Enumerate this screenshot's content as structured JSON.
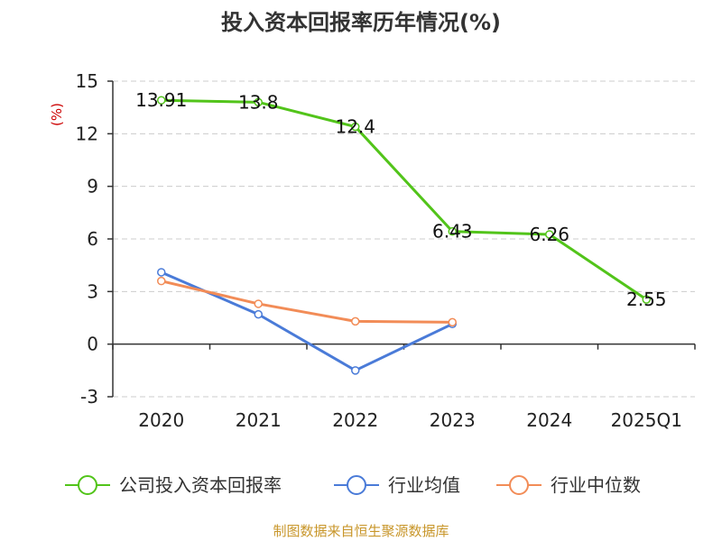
{
  "chart_data": {
    "type": "line",
    "title": "投入资本回报率历年情况(%)",
    "ylabel": "(%)",
    "categories": [
      "2020",
      "2021",
      "2022",
      "2023",
      "2024",
      "2025Q1"
    ],
    "ylim": [
      -3,
      15
    ],
    "yticks": [
      "15",
      "12",
      "9",
      "6",
      "3",
      "0",
      "-3"
    ],
    "grid": true,
    "legend_position": "bottom",
    "series": [
      {
        "name": "公司投入资本回报率",
        "color": "#52c41a",
        "values": [
          13.91,
          13.8,
          12.4,
          6.43,
          6.26,
          2.55
        ],
        "labels": [
          "13.91",
          "13.8",
          "12.4",
          "6.43",
          "6.26",
          "2.55"
        ]
      },
      {
        "name": "行业均值",
        "color": "#4a7bd8",
        "values": [
          4.1,
          1.7,
          -1.5,
          1.15,
          null,
          null
        ]
      },
      {
        "name": "行业中位数",
        "color": "#f28c57",
        "values": [
          3.6,
          2.3,
          1.3,
          1.25,
          null,
          null
        ]
      }
    ],
    "source": "制图数据来自恒生聚源数据库",
    "unit_color": "#cc0000",
    "source_color": "#c8962a"
  }
}
